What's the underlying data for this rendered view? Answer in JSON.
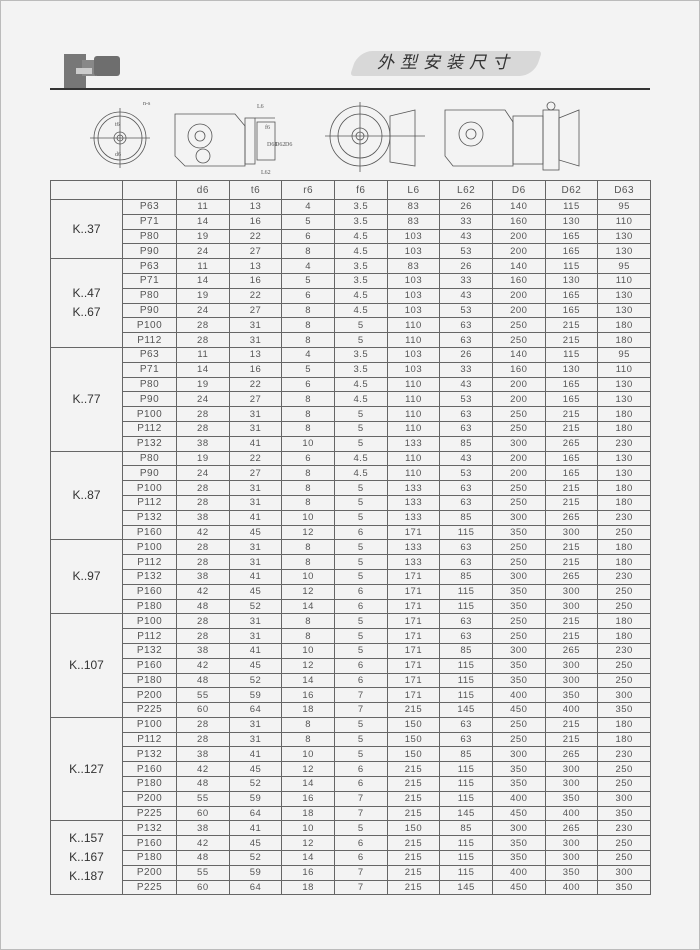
{
  "header": {
    "title": "外型安装尺寸"
  },
  "drawing_labels": {
    "bolt": "n-s",
    "t6": "t6",
    "d6": "d6",
    "L6": "L6",
    "f6": "f6",
    "D63": "D63",
    "D62": "D62",
    "D6": "D6",
    "L62": "L62"
  },
  "table": {
    "columns": [
      "",
      "",
      "d6",
      "t6",
      "r6",
      "f6",
      "L6",
      "L62",
      "D6",
      "D62",
      "D63"
    ],
    "groups": [
      {
        "models": [
          "K..37"
        ],
        "rows": [
          [
            "P63",
            "11",
            "13",
            "4",
            "3.5",
            "83",
            "26",
            "140",
            "115",
            "95"
          ],
          [
            "P71",
            "14",
            "16",
            "5",
            "3.5",
            "83",
            "33",
            "160",
            "130",
            "110"
          ],
          [
            "P80",
            "19",
            "22",
            "6",
            "4.5",
            "103",
            "43",
            "200",
            "165",
            "130"
          ],
          [
            "P90",
            "24",
            "27",
            "8",
            "4.5",
            "103",
            "53",
            "200",
            "165",
            "130"
          ]
        ]
      },
      {
        "models": [
          "K..47",
          "K..67"
        ],
        "rows": [
          [
            "P63",
            "11",
            "13",
            "4",
            "3.5",
            "83",
            "26",
            "140",
            "115",
            "95"
          ],
          [
            "P71",
            "14",
            "16",
            "5",
            "3.5",
            "103",
            "33",
            "160",
            "130",
            "110"
          ],
          [
            "P80",
            "19",
            "22",
            "6",
            "4.5",
            "103",
            "43",
            "200",
            "165",
            "130"
          ],
          [
            "P90",
            "24",
            "27",
            "8",
            "4.5",
            "103",
            "53",
            "200",
            "165",
            "130"
          ],
          [
            "P100",
            "28",
            "31",
            "8",
            "5",
            "110",
            "63",
            "250",
            "215",
            "180"
          ],
          [
            "P112",
            "28",
            "31",
            "8",
            "5",
            "110",
            "63",
            "250",
            "215",
            "180"
          ]
        ]
      },
      {
        "models": [
          "K..77"
        ],
        "rows": [
          [
            "P63",
            "11",
            "13",
            "4",
            "3.5",
            "103",
            "26",
            "140",
            "115",
            "95"
          ],
          [
            "P71",
            "14",
            "16",
            "5",
            "3.5",
            "103",
            "33",
            "160",
            "130",
            "110"
          ],
          [
            "P80",
            "19",
            "22",
            "6",
            "4.5",
            "110",
            "43",
            "200",
            "165",
            "130"
          ],
          [
            "P90",
            "24",
            "27",
            "8",
            "4.5",
            "110",
            "53",
            "200",
            "165",
            "130"
          ],
          [
            "P100",
            "28",
            "31",
            "8",
            "5",
            "110",
            "63",
            "250",
            "215",
            "180"
          ],
          [
            "P112",
            "28",
            "31",
            "8",
            "5",
            "110",
            "63",
            "250",
            "215",
            "180"
          ],
          [
            "P132",
            "38",
            "41",
            "10",
            "5",
            "133",
            "85",
            "300",
            "265",
            "230"
          ]
        ]
      },
      {
        "models": [
          "K..87"
        ],
        "rows": [
          [
            "P80",
            "19",
            "22",
            "6",
            "4.5",
            "110",
            "43",
            "200",
            "165",
            "130"
          ],
          [
            "P90",
            "24",
            "27",
            "8",
            "4.5",
            "110",
            "53",
            "200",
            "165",
            "130"
          ],
          [
            "P100",
            "28",
            "31",
            "8",
            "5",
            "133",
            "63",
            "250",
            "215",
            "180"
          ],
          [
            "P112",
            "28",
            "31",
            "8",
            "5",
            "133",
            "63",
            "250",
            "215",
            "180"
          ],
          [
            "P132",
            "38",
            "41",
            "10",
            "5",
            "133",
            "85",
            "300",
            "265",
            "230"
          ],
          [
            "P160",
            "42",
            "45",
            "12",
            "6",
            "171",
            "115",
            "350",
            "300",
            "250"
          ]
        ]
      },
      {
        "models": [
          "K..97"
        ],
        "rows": [
          [
            "P100",
            "28",
            "31",
            "8",
            "5",
            "133",
            "63",
            "250",
            "215",
            "180"
          ],
          [
            "P112",
            "28",
            "31",
            "8",
            "5",
            "133",
            "63",
            "250",
            "215",
            "180"
          ],
          [
            "P132",
            "38",
            "41",
            "10",
            "5",
            "171",
            "85",
            "300",
            "265",
            "230"
          ],
          [
            "P160",
            "42",
            "45",
            "12",
            "6",
            "171",
            "115",
            "350",
            "300",
            "250"
          ],
          [
            "P180",
            "48",
            "52",
            "14",
            "6",
            "171",
            "115",
            "350",
            "300",
            "250"
          ]
        ]
      },
      {
        "models": [
          "K..107"
        ],
        "rows": [
          [
            "P100",
            "28",
            "31",
            "8",
            "5",
            "171",
            "63",
            "250",
            "215",
            "180"
          ],
          [
            "P112",
            "28",
            "31",
            "8",
            "5",
            "171",
            "63",
            "250",
            "215",
            "180"
          ],
          [
            "P132",
            "38",
            "41",
            "10",
            "5",
            "171",
            "85",
            "300",
            "265",
            "230"
          ],
          [
            "P160",
            "42",
            "45",
            "12",
            "6",
            "171",
            "115",
            "350",
            "300",
            "250"
          ],
          [
            "P180",
            "48",
            "52",
            "14",
            "6",
            "171",
            "115",
            "350",
            "300",
            "250"
          ],
          [
            "P200",
            "55",
            "59",
            "16",
            "7",
            "171",
            "115",
            "400",
            "350",
            "300"
          ],
          [
            "P225",
            "60",
            "64",
            "18",
            "7",
            "215",
            "145",
            "450",
            "400",
            "350"
          ]
        ]
      },
      {
        "models": [
          "K..127"
        ],
        "rows": [
          [
            "P100",
            "28",
            "31",
            "8",
            "5",
            "150",
            "63",
            "250",
            "215",
            "180"
          ],
          [
            "P112",
            "28",
            "31",
            "8",
            "5",
            "150",
            "63",
            "250",
            "215",
            "180"
          ],
          [
            "P132",
            "38",
            "41",
            "10",
            "5",
            "150",
            "85",
            "300",
            "265",
            "230"
          ],
          [
            "P160",
            "42",
            "45",
            "12",
            "6",
            "215",
            "115",
            "350",
            "300",
            "250"
          ],
          [
            "P180",
            "48",
            "52",
            "14",
            "6",
            "215",
            "115",
            "350",
            "300",
            "250"
          ],
          [
            "P200",
            "55",
            "59",
            "16",
            "7",
            "215",
            "115",
            "400",
            "350",
            "300"
          ],
          [
            "P225",
            "60",
            "64",
            "18",
            "7",
            "215",
            "145",
            "450",
            "400",
            "350"
          ]
        ]
      },
      {
        "models": [
          "K..157",
          "K..167",
          "K..187"
        ],
        "rows": [
          [
            "P132",
            "38",
            "41",
            "10",
            "5",
            "150",
            "85",
            "300",
            "265",
            "230"
          ],
          [
            "P160",
            "42",
            "45",
            "12",
            "6",
            "215",
            "115",
            "350",
            "300",
            "250"
          ],
          [
            "P180",
            "48",
            "52",
            "14",
            "6",
            "215",
            "115",
            "350",
            "300",
            "250"
          ],
          [
            "P200",
            "55",
            "59",
            "16",
            "7",
            "215",
            "115",
            "400",
            "350",
            "300"
          ],
          [
            "P225",
            "60",
            "64",
            "18",
            "7",
            "215",
            "145",
            "450",
            "400",
            "350"
          ]
        ]
      }
    ]
  }
}
